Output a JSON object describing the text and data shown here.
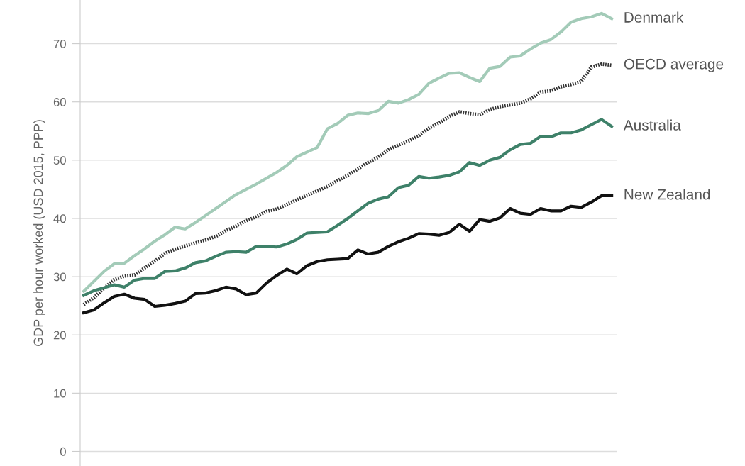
{
  "chart_data": {
    "type": "line",
    "ylabel": "GDP per hour worked (USD 2015, PPP)",
    "categories": [
      null,
      null,
      null,
      null,
      null,
      null,
      null,
      null,
      null,
      null,
      null,
      null,
      null,
      null,
      null,
      null,
      null,
      null,
      null,
      null,
      null,
      null,
      null,
      null,
      null,
      null,
      null,
      null,
      null,
      null,
      null,
      null,
      null,
      null,
      null,
      null,
      null,
      null,
      null,
      null,
      null,
      null,
      null,
      null,
      null,
      null,
      null,
      null,
      null,
      null,
      null,
      null,
      null
    ],
    "series": [
      {
        "name": "Denmark",
        "color": "#a3cbb8",
        "line_style": "solid",
        "values": [
          27.5,
          29.2,
          30.9,
          32.2,
          32.3,
          33.6,
          34.8,
          36.1,
          37.2,
          38.5,
          38.2,
          39.3,
          40.5,
          41.7,
          42.9,
          44.1,
          45.0,
          45.9,
          46.9,
          47.9,
          49.1,
          50.6,
          51.4,
          52.2,
          55.4,
          56.3,
          57.7,
          58.1,
          58.0,
          58.5,
          60.1,
          59.8,
          60.4,
          61.3,
          63.2,
          64.1,
          64.9,
          65.0,
          64.2,
          63.5,
          65.8,
          66.1,
          67.7,
          67.9,
          69.1,
          70.1,
          70.7,
          72.0,
          73.7,
          74.3,
          74.6,
          75.2,
          74.3
        ]
      },
      {
        "name": "OECD average",
        "color": "#333333",
        "line_style": "dotted",
        "values": [
          25.2,
          26.4,
          28.0,
          29.5,
          30.1,
          30.3,
          31.5,
          32.7,
          34.0,
          34.7,
          35.3,
          35.8,
          36.3,
          36.9,
          37.9,
          38.7,
          39.6,
          40.3,
          41.2,
          41.6,
          42.4,
          43.2,
          44.0,
          44.7,
          45.5,
          46.5,
          47.4,
          48.5,
          49.6,
          50.5,
          51.8,
          52.6,
          53.3,
          54.2,
          55.5,
          56.4,
          57.5,
          58.3,
          58.0,
          57.8,
          58.7,
          59.2,
          59.5,
          59.8,
          60.5,
          61.7,
          61.9,
          62.6,
          63.0,
          63.5,
          66.0,
          66.5,
          66.3
        ]
      },
      {
        "name": "Australia",
        "color": "#3e8169",
        "line_style": "solid",
        "values": [
          26.8,
          27.6,
          28.1,
          28.6,
          28.2,
          29.4,
          29.7,
          29.7,
          30.9,
          31.0,
          31.5,
          32.4,
          32.7,
          33.5,
          34.2,
          34.3,
          34.2,
          35.2,
          35.2,
          35.1,
          35.6,
          36.4,
          37.5,
          37.6,
          37.7,
          38.8,
          40.0,
          41.3,
          42.6,
          43.3,
          43.7,
          45.3,
          45.7,
          47.2,
          46.9,
          47.1,
          47.4,
          48.0,
          49.6,
          49.1,
          50.0,
          50.5,
          51.8,
          52.7,
          52.9,
          54.1,
          54.0,
          54.7,
          54.7,
          55.2,
          56.1,
          57.0,
          55.8
        ]
      },
      {
        "name": "New Zealand",
        "color": "#111111",
        "line_style": "solid",
        "values": [
          23.8,
          24.3,
          25.5,
          26.6,
          27.0,
          26.3,
          26.1,
          24.9,
          25.1,
          25.4,
          25.8,
          27.1,
          27.2,
          27.6,
          28.2,
          27.9,
          26.9,
          27.2,
          28.9,
          30.2,
          31.3,
          30.5,
          31.9,
          32.6,
          32.9,
          33.0,
          33.1,
          34.6,
          33.9,
          34.2,
          35.2,
          36.0,
          36.6,
          37.4,
          37.3,
          37.1,
          37.6,
          39.0,
          37.8,
          39.8,
          39.5,
          40.1,
          41.7,
          40.9,
          40.7,
          41.7,
          41.3,
          41.3,
          42.1,
          41.9,
          42.8,
          43.9,
          43.9
        ]
      }
    ],
    "ylim": [
      -2.5,
      77.5
    ],
    "yticks": [
      0,
      10,
      20,
      30,
      40,
      50,
      60,
      70
    ],
    "grid": "y",
    "legend": "right",
    "marker": "none"
  }
}
